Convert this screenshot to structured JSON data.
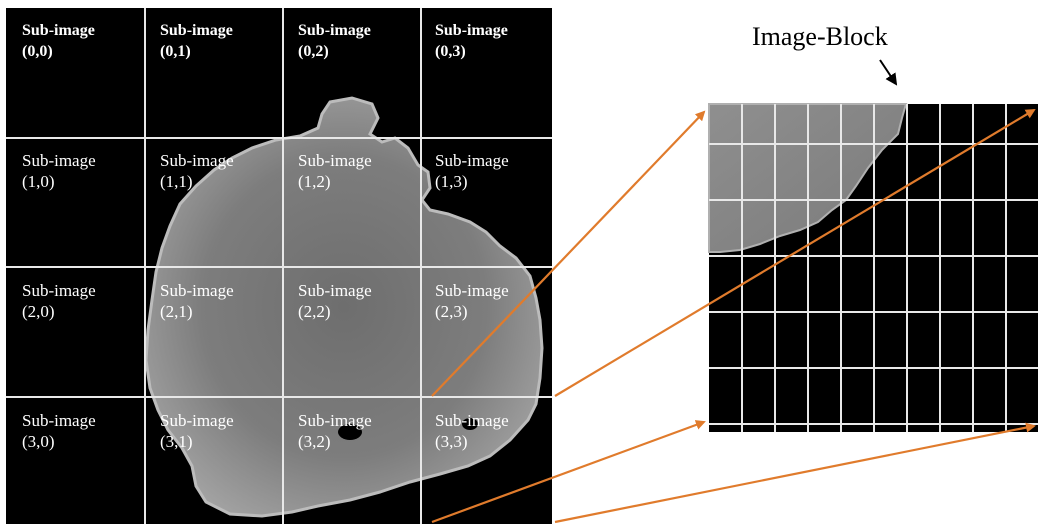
{
  "block_title": "Image-Block",
  "sub_images": [
    {
      "row": 0,
      "col": 0,
      "name": "Sub-image",
      "index": "(0,0)"
    },
    {
      "row": 0,
      "col": 1,
      "name": "Sub-image",
      "index": "(0,1)"
    },
    {
      "row": 0,
      "col": 2,
      "name": "Sub-image",
      "index": "(0,2)"
    },
    {
      "row": 0,
      "col": 3,
      "name": "Sub-image",
      "index": "(0,3)"
    },
    {
      "row": 1,
      "col": 0,
      "name": "Sub-image",
      "index": "(1,0)"
    },
    {
      "row": 1,
      "col": 1,
      "name": "Sub-image",
      "index": "(1,1)"
    },
    {
      "row": 1,
      "col": 2,
      "name": "Sub-image",
      "index": "(1,2)"
    },
    {
      "row": 1,
      "col": 3,
      "name": "Sub-image",
      "index": "(1,3)"
    },
    {
      "row": 2,
      "col": 0,
      "name": "Sub-image",
      "index": "(2,0)"
    },
    {
      "row": 2,
      "col": 1,
      "name": "Sub-image",
      "index": "(2,1)"
    },
    {
      "row": 2,
      "col": 2,
      "name": "Sub-image",
      "index": "(2,2)"
    },
    {
      "row": 2,
      "col": 3,
      "name": "Sub-image",
      "index": "(2,3)"
    },
    {
      "row": 3,
      "col": 0,
      "name": "Sub-image",
      "index": "(3,0)"
    },
    {
      "row": 3,
      "col": 1,
      "name": "Sub-image",
      "index": "(3,1)"
    },
    {
      "row": 3,
      "col": 2,
      "name": "Sub-image",
      "index": "(3,2)"
    },
    {
      "row": 3,
      "col": 3,
      "name": "Sub-image",
      "index": "(3,3)"
    }
  ],
  "colors": {
    "background": "#000000",
    "grid_lines": "#e8e8e8",
    "arrows": "#e07b2c",
    "specimen": "#8a8a8a"
  }
}
